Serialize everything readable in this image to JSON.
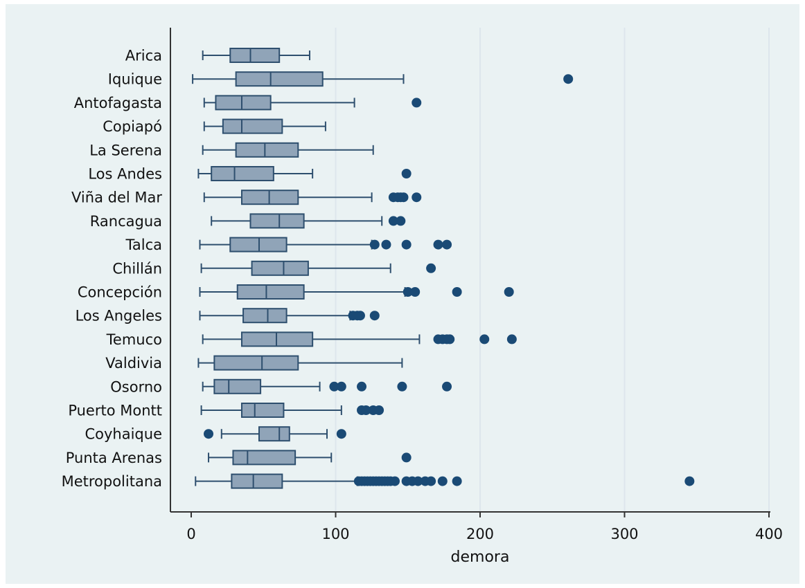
{
  "chart_data": {
    "type": "boxplot",
    "orientation": "horizontal",
    "xlabel": "demora",
    "xlim": [
      0,
      400
    ],
    "xticks": [
      0,
      100,
      200,
      300,
      400
    ],
    "grid": true,
    "colors": {
      "box": "#90a4b8",
      "line": "#2e4f6e",
      "outlier": "#1a4a75",
      "grid": "#dde6ec",
      "panel": "#eaf2f3"
    },
    "categories": [
      "Arica",
      "Iquique",
      "Antofagasta",
      "Copiapó",
      "La Serena",
      "Los Andes",
      "Viña del Mar",
      "Rancagua",
      "Talca",
      "Chillán",
      "Concepción",
      "Los Angeles",
      "Temuco",
      "Valdivia",
      "Osorno",
      "Puerto Montt",
      "Coyhaique",
      "Punta Arenas",
      "Metropolitana"
    ],
    "boxes": [
      {
        "whisker_low": 8,
        "q1": 27,
        "median": 41,
        "q3": 61,
        "whisker_high": 82,
        "outliers": []
      },
      {
        "whisker_low": 1,
        "q1": 31,
        "median": 55,
        "q3": 91,
        "whisker_high": 147,
        "outliers": [
          261
        ]
      },
      {
        "whisker_low": 9,
        "q1": 17,
        "median": 35,
        "q3": 55,
        "whisker_high": 113,
        "outliers": [
          156
        ]
      },
      {
        "whisker_low": 9,
        "q1": 22,
        "median": 35,
        "q3": 63,
        "whisker_high": 93,
        "outliers": []
      },
      {
        "whisker_low": 8,
        "q1": 31,
        "median": 51,
        "q3": 74,
        "whisker_high": 126,
        "outliers": []
      },
      {
        "whisker_low": 5,
        "q1": 14,
        "median": 30,
        "q3": 57,
        "whisker_high": 84,
        "outliers": [
          149
        ]
      },
      {
        "whisker_low": 9,
        "q1": 35,
        "median": 54,
        "q3": 74,
        "whisker_high": 125,
        "outliers": [
          140,
          143,
          145,
          147,
          156
        ]
      },
      {
        "whisker_low": 14,
        "q1": 41,
        "median": 61,
        "q3": 78,
        "whisker_high": 132,
        "outliers": [
          140,
          145
        ]
      },
      {
        "whisker_low": 6,
        "q1": 27,
        "median": 47,
        "q3": 66,
        "whisker_high": 125,
        "outliers": [
          127,
          135,
          149,
          171,
          177
        ]
      },
      {
        "whisker_low": 7,
        "q1": 42,
        "median": 64,
        "q3": 81,
        "whisker_high": 138,
        "outliers": [
          166
        ]
      },
      {
        "whisker_low": 6,
        "q1": 32,
        "median": 52,
        "q3": 78,
        "whisker_high": 148,
        "outliers": [
          150,
          155,
          184,
          220
        ]
      },
      {
        "whisker_low": 6,
        "q1": 36,
        "median": 53,
        "q3": 66,
        "whisker_high": 110,
        "outliers": [
          112,
          115,
          117,
          127
        ]
      },
      {
        "whisker_low": 8,
        "q1": 35,
        "median": 59,
        "q3": 84,
        "whisker_high": 158,
        "outliers": [
          171,
          174,
          177,
          179,
          203,
          222
        ]
      },
      {
        "whisker_low": 5,
        "q1": 16,
        "median": 49,
        "q3": 74,
        "whisker_high": 146,
        "outliers": []
      },
      {
        "whisker_low": 8,
        "q1": 16,
        "median": 26,
        "q3": 48,
        "whisker_high": 89,
        "outliers": [
          99,
          104,
          118,
          146,
          177
        ]
      },
      {
        "whisker_low": 7,
        "q1": 35,
        "median": 44,
        "q3": 64,
        "whisker_high": 104,
        "outliers": [
          118,
          121,
          126,
          130
        ]
      },
      {
        "whisker_low": 21,
        "q1": 47,
        "median": 61,
        "q3": 68,
        "whisker_high": 94,
        "outliers": [
          12,
          104
        ]
      },
      {
        "whisker_low": 12,
        "q1": 29,
        "median": 39,
        "q3": 72,
        "whisker_high": 97,
        "outliers": [
          149
        ]
      },
      {
        "whisker_low": 3,
        "q1": 28,
        "median": 43,
        "q3": 63,
        "whisker_high": 115,
        "outliers": [
          116,
          118,
          120,
          122,
          124,
          126,
          128,
          130,
          132,
          134,
          136,
          138,
          141,
          149,
          153,
          157,
          162,
          166,
          174,
          184,
          345
        ]
      }
    ]
  }
}
